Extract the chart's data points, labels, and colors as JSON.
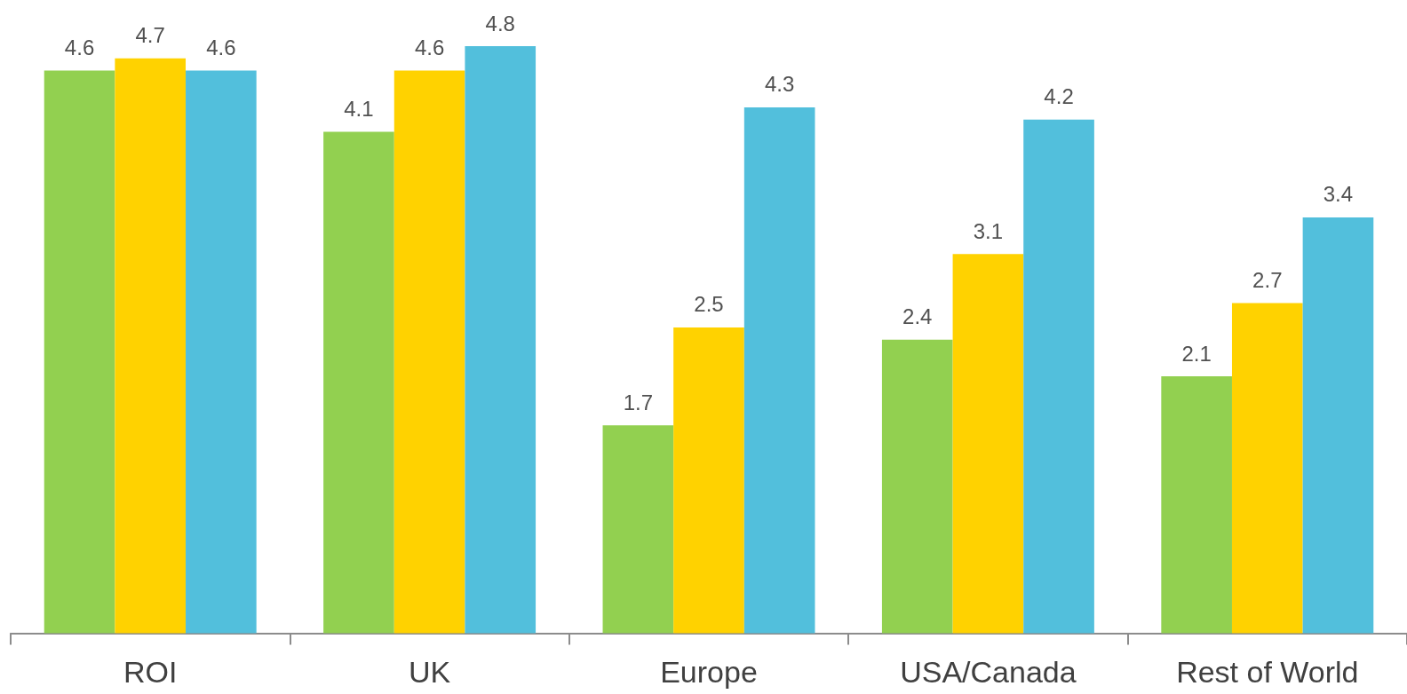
{
  "chart_data": {
    "type": "bar",
    "categories": [
      "ROI",
      "UK",
      "Europe",
      "USA/Canada",
      "Rest of World"
    ],
    "series": [
      {
        "color": "#92d050",
        "values": [
          4.6,
          4.1,
          1.7,
          2.4,
          2.1
        ]
      },
      {
        "color": "#ffd200",
        "values": [
          4.7,
          4.6,
          2.5,
          3.1,
          2.7
        ]
      },
      {
        "color": "#52bfdc",
        "values": [
          4.6,
          4.8,
          4.3,
          4.2,
          3.4
        ]
      }
    ],
    "data_labels": true
  }
}
